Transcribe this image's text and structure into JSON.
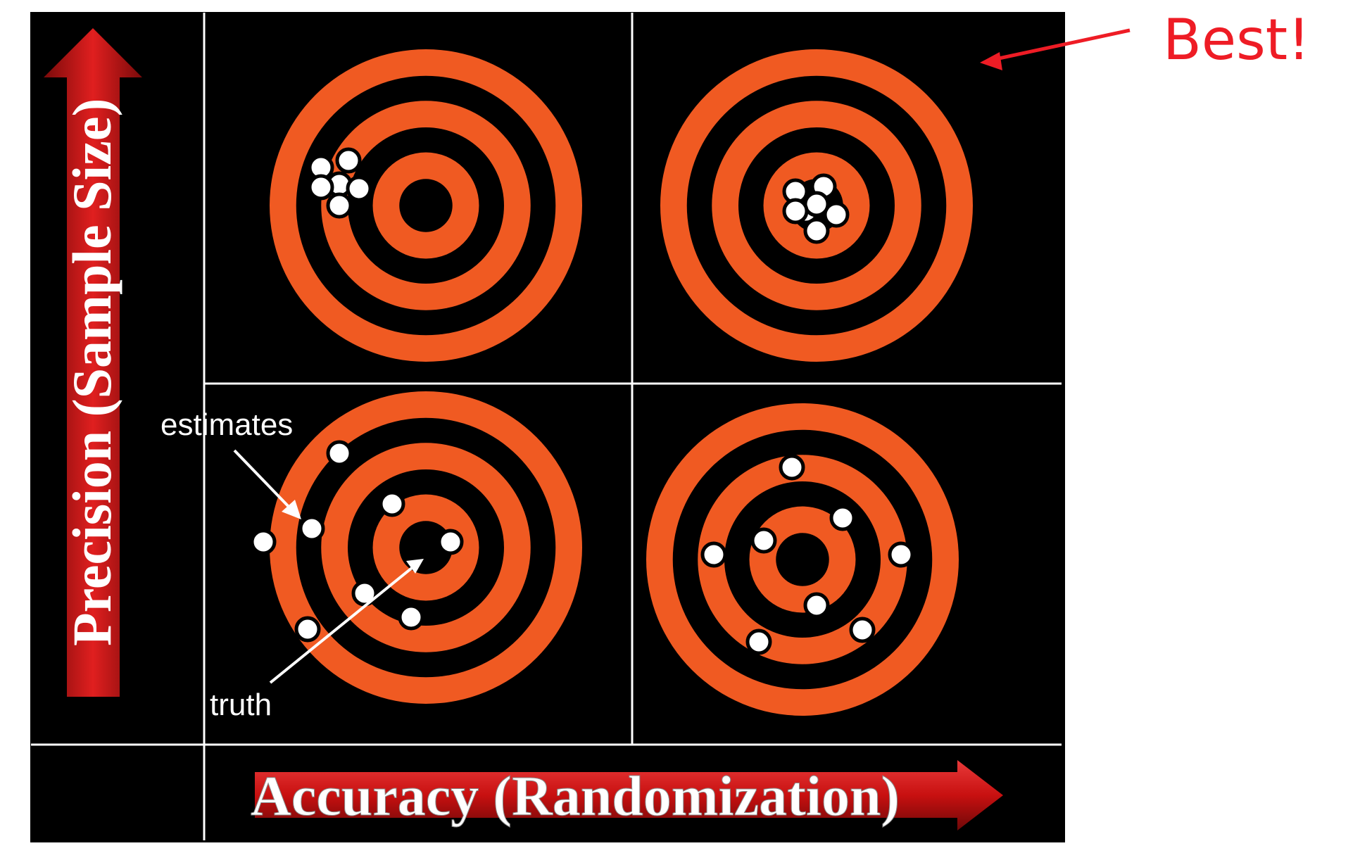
{
  "labels": {
    "y_axis": "Precision (Sample Size)",
    "x_axis": "Accuracy (Randomization)",
    "best": "Best!",
    "estimates": "estimates",
    "truth": "truth"
  },
  "colors": {
    "ring_orange": "#f05a22",
    "ring_black": "#000000",
    "arrow_red": "#cc1414",
    "annotation_red": "#ee1c25",
    "dot": "#ffffff"
  },
  "quadrants": [
    {
      "name": "precise-inaccurate",
      "position": "top-left"
    },
    {
      "name": "precise-accurate",
      "position": "top-right",
      "note": "Best!"
    },
    {
      "name": "imprecise-inaccurate",
      "position": "bottom-left"
    },
    {
      "name": "imprecise-accurate",
      "position": "bottom-right"
    }
  ]
}
